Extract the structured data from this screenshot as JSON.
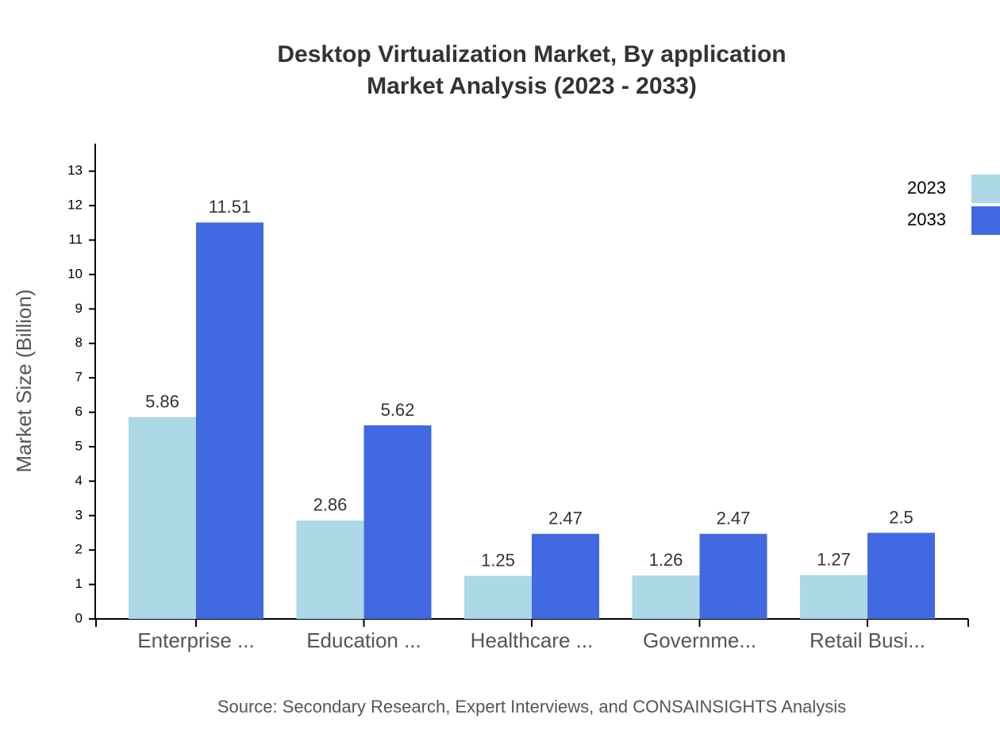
{
  "chart_data": {
    "type": "bar",
    "title": "Desktop Virtualization Market, By application",
    "subtitle": "Market Analysis (2023 - 2033)",
    "y_label": "Market Size (Billion)",
    "source": "Source: Secondary Research, Expert Interviews, and CONSAINSIGHTS Analysis",
    "categories": [
      "Enterprise ...",
      "Education ...",
      "Healthcare ...",
      "Governme...",
      "Retail Busi..."
    ],
    "series": [
      {
        "name": "2023",
        "color": "#add8e6",
        "values": [
          5.86,
          2.86,
          1.25,
          1.26,
          1.27
        ]
      },
      {
        "name": "2033",
        "color": "#4169e1",
        "values": [
          11.51,
          5.62,
          2.47,
          2.47,
          2.5
        ]
      }
    ],
    "ylim": [
      0,
      13.8
    ],
    "yticks": [
      0,
      1,
      2,
      3,
      4,
      5,
      6,
      7,
      8,
      9,
      10,
      11,
      12,
      13
    ],
    "legend": "top-right"
  }
}
